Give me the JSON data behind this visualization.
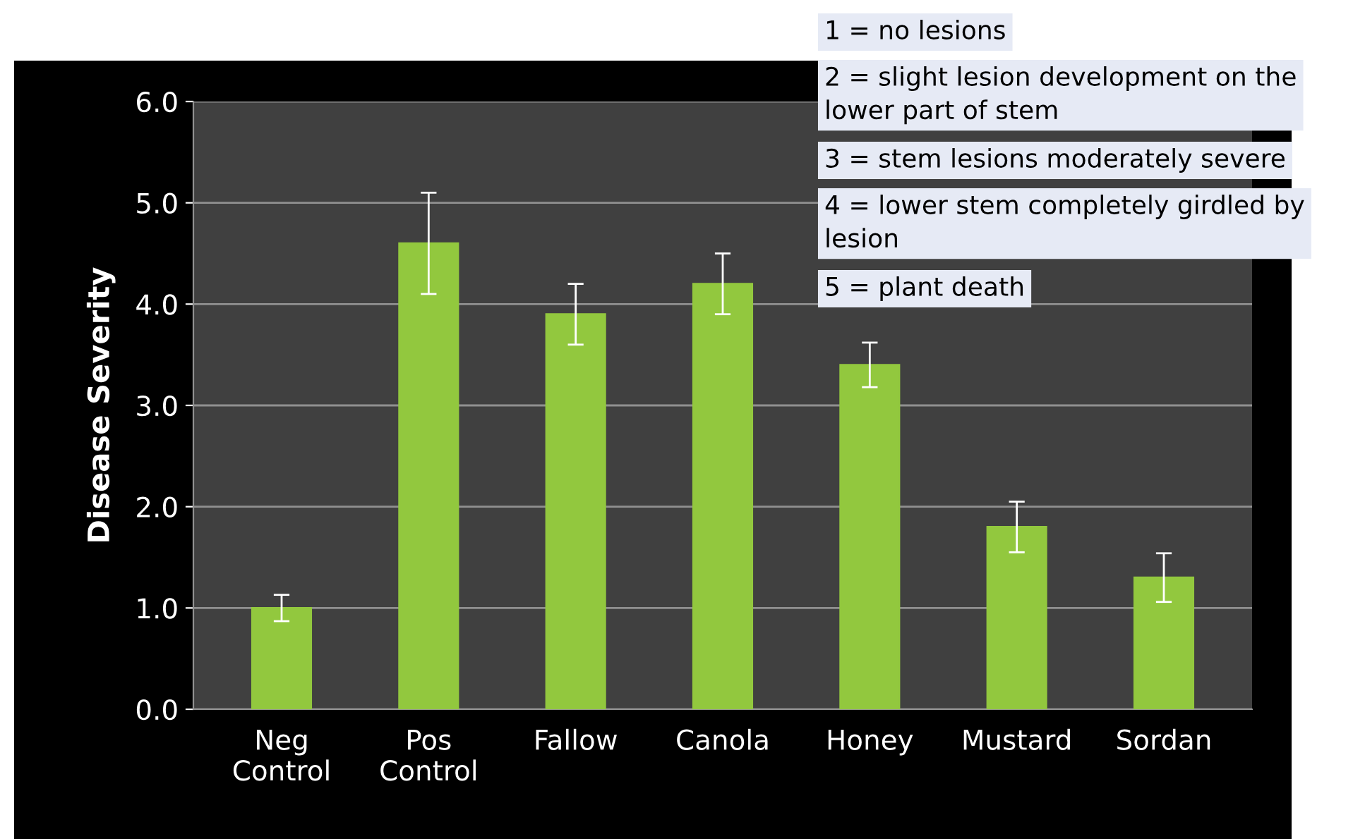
{
  "chart_data": {
    "type": "bar",
    "ylabel": "Disease Severity",
    "categories": [
      "Neg\nControl",
      "Pos\nControl",
      "Fallow",
      "Canola",
      "Honey",
      "Mustard",
      "Sordan"
    ],
    "values": [
      1.0,
      4.6,
      3.9,
      4.2,
      3.4,
      1.8,
      1.3
    ],
    "errors": [
      0.13,
      0.5,
      0.3,
      0.3,
      0.22,
      0.25,
      0.24
    ],
    "color": "#92c83e",
    "ylim": [
      0,
      6
    ],
    "yticks": [
      {
        "value": 0,
        "label": "0.0"
      },
      {
        "value": 1,
        "label": "1.0"
      },
      {
        "value": 2,
        "label": "2.0"
      },
      {
        "value": 3,
        "label": "3.0"
      },
      {
        "value": 4,
        "label": "4.0"
      },
      {
        "value": 5,
        "label": "5.0"
      },
      {
        "value": 6,
        "label": "6.0"
      }
    ],
    "grid": "y",
    "annotations": [
      "1 = no lesions",
      "2 = slight lesion development on the\nlower part of stem",
      "3 = stem lesions moderately severe",
      "4 = lower stem completely girdled by\nlesion",
      "5 = plant death"
    ]
  }
}
